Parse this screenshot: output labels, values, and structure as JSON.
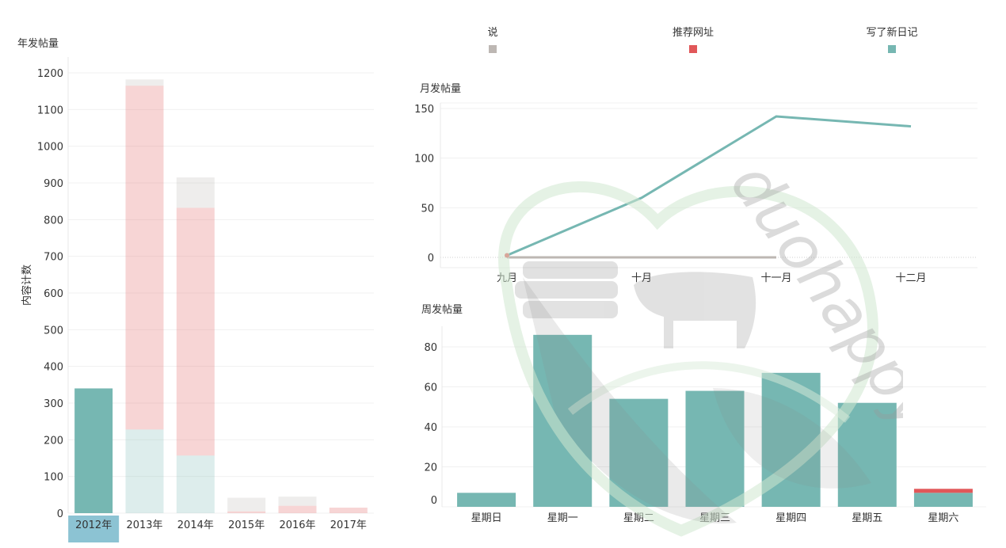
{
  "colors": {
    "shuo": "#bdb7b3",
    "recommend": "#e15759",
    "diary": "#76b7b2",
    "yearly_selected_label_bg": "#8cc3d3"
  },
  "legend": {
    "items": [
      {
        "label": "说",
        "color": "#bdb7b3"
      },
      {
        "label": "推荐网址",
        "color": "#e15759"
      },
      {
        "label": "写了新日记",
        "color": "#76b7b2"
      }
    ]
  },
  "chart_data": [
    {
      "type": "bar",
      "title": "年发帖量",
      "ylabel": "内容计数",
      "ylim": [
        0,
        1250
      ],
      "yticks": [
        0,
        100,
        200,
        300,
        400,
        500,
        600,
        700,
        800,
        900,
        1000,
        1100,
        1200
      ],
      "categories": [
        "2012年",
        "2013年",
        "2014年",
        "2015年",
        "2016年",
        "2017年"
      ],
      "selected": "2012年",
      "series": [
        {
          "color": "#76b7b2",
          "values": [
            340,
            228,
            157,
            0,
            0,
            0
          ]
        },
        {
          "color": "#e15759",
          "values": [
            0,
            937,
            675,
            5,
            20,
            15
          ]
        },
        {
          "color": "#bdb7b3",
          "values": [
            0,
            17,
            83,
            37,
            25,
            0
          ]
        }
      ]
    },
    {
      "type": "line",
      "title": "月发帖量",
      "ylim": [
        -10,
        150
      ],
      "yticks": [
        0,
        50,
        100,
        150
      ],
      "categories": [
        "九月",
        "十月",
        "十一月",
        "十二月"
      ],
      "series": [
        {
          "color": "#76b7b2",
          "values": [
            2,
            60,
            142,
            132
          ]
        },
        {
          "color": "#bdb7b3",
          "values": [
            0,
            0,
            0,
            null
          ]
        },
        {
          "color": "#e15759",
          "values": [
            2,
            null,
            null,
            null
          ]
        }
      ]
    },
    {
      "type": "bar",
      "title": "周发帖量",
      "ylim": [
        -5,
        90
      ],
      "yticks": [
        0,
        20,
        40,
        60,
        80
      ],
      "categories": [
        "星期日",
        "星期一",
        "星期二",
        "星期三",
        "星期四",
        "星期五",
        "星期六"
      ],
      "series": [
        {
          "color": "#76b7b2",
          "values": [
            7,
            86,
            54,
            58,
            67,
            52,
            7
          ]
        },
        {
          "color": "#e15759",
          "values": [
            0,
            0,
            0,
            0,
            0,
            0,
            2
          ]
        }
      ]
    }
  ],
  "watermark": {
    "text": "duohappy"
  }
}
